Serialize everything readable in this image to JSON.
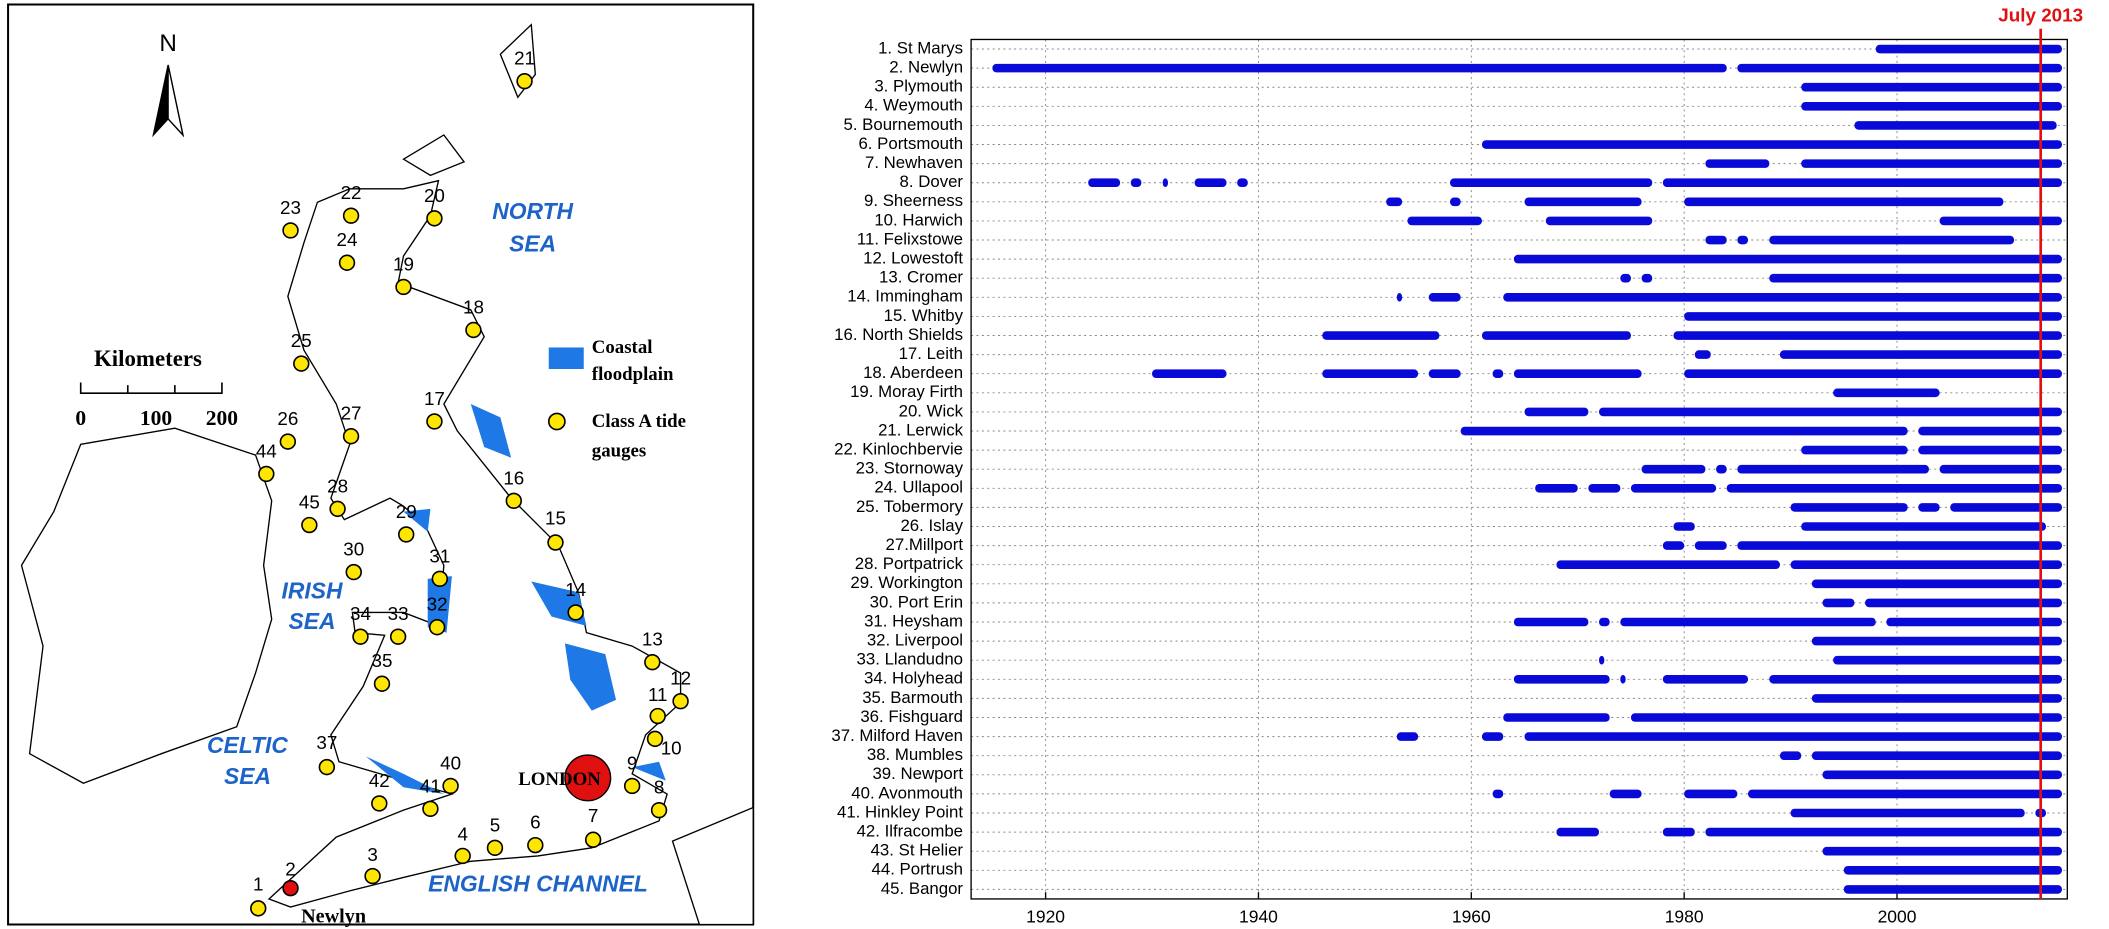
{
  "map": {
    "north": "N",
    "scale": {
      "title": "Kilometers",
      "ticks": [
        "0",
        "100",
        "200"
      ]
    },
    "legend": [
      [
        "Coastal",
        "floodplain"
      ],
      [
        "Class A tide",
        "gauges"
      ]
    ],
    "seas": [
      [
        "NORTH",
        "SEA"
      ],
      [
        "IRISH",
        "SEA"
      ],
      [
        "CELTIC",
        "SEA"
      ],
      [
        "ENGLISH CHANNEL"
      ]
    ],
    "gauges": [
      "1",
      "2",
      "3",
      "4",
      "5",
      "6",
      "7",
      "8",
      "9",
      "10",
      "11",
      "12",
      "13",
      "14",
      "15",
      "16",
      "17",
      "18",
      "19",
      "20",
      "21",
      "22",
      "23",
      "24",
      "25",
      "26",
      "27",
      "28",
      "29",
      "30",
      "31",
      "32",
      "33",
      "34",
      "35",
      "37",
      "40",
      "41",
      "42",
      "44",
      "45"
    ],
    "london": "LONDON",
    "newlyn": "Newlyn"
  },
  "chart_data": {
    "type": "timeline",
    "categories": [
      "1. St Marys",
      "2. Newlyn",
      "3. Plymouth",
      "4. Weymouth",
      "5. Bournemouth",
      "6. Portsmouth",
      "7. Newhaven",
      "8. Dover",
      "9. Sheerness",
      "10. Harwich",
      "11. Felixstowe",
      "12. Lowestoft",
      "13. Cromer",
      "14. Immingham",
      "15. Whitby",
      "16. North Shields",
      "17. Leith",
      "18. Aberdeen",
      "19. Moray Firth",
      "20. Wick",
      "21. Lerwick",
      "22. Kinlochbervie",
      "23. Stornoway",
      "24. Ullapool",
      "25. Tobermory",
      "26. Islay",
      "27.Millport",
      "28. Portpatrick",
      "29. Workington",
      "30. Port Erin",
      "31. Heysham",
      "32. Liverpool",
      "33. Llandudno",
      "34. Holyhead",
      "35. Barmouth",
      "36. Fishguard",
      "37. Milford Haven",
      "38. Mumbles",
      "39. Newport",
      "40. Avonmouth",
      "41. Hinkley Point",
      "42. Ilfracombe",
      "43. St Helier",
      "44. Portrush",
      "45. Bangor"
    ],
    "segments": [
      [
        [
          1998,
          2015.5
        ]
      ],
      [
        [
          1915,
          1984
        ],
        [
          1985,
          2015.5
        ]
      ],
      [
        [
          1991,
          2015.5
        ]
      ],
      [
        [
          1991,
          2015.5
        ]
      ],
      [
        [
          1996,
          2015
        ]
      ],
      [
        [
          1961,
          2015.5
        ]
      ],
      [
        [
          1982,
          1988
        ],
        [
          1991,
          2015.5
        ]
      ],
      [
        [
          1924,
          1927
        ],
        [
          1928,
          1929
        ],
        [
          1931,
          1931.5
        ],
        [
          1934,
          1937
        ],
        [
          1938,
          1939
        ],
        [
          1958,
          1977
        ],
        [
          1978,
          2015.5
        ]
      ],
      [
        [
          1952,
          1953.5
        ],
        [
          1958,
          1959
        ],
        [
          1965,
          1976
        ],
        [
          1980,
          2010
        ]
      ],
      [
        [
          1954,
          1961
        ],
        [
          1967,
          1977
        ],
        [
          2004,
          2015.5
        ]
      ],
      [
        [
          1982,
          1984
        ],
        [
          1985,
          1986
        ],
        [
          1988,
          2011
        ]
      ],
      [
        [
          1964,
          2015.5
        ]
      ],
      [
        [
          1974,
          1975
        ],
        [
          1976,
          1977
        ],
        [
          1988,
          2015.5
        ]
      ],
      [
        [
          1953,
          1953.5
        ],
        [
          1956,
          1959
        ],
        [
          1963,
          2015.5
        ]
      ],
      [
        [
          1980,
          2015.5
        ]
      ],
      [
        [
          1946,
          1957
        ],
        [
          1961,
          1975
        ],
        [
          1979,
          2015.5
        ]
      ],
      [
        [
          1981,
          1982.5
        ],
        [
          1989,
          2015.5
        ]
      ],
      [
        [
          1930,
          1937
        ],
        [
          1946,
          1955
        ],
        [
          1956,
          1959
        ],
        [
          1962,
          1963
        ],
        [
          1964,
          1976
        ],
        [
          1980,
          2015.5
        ]
      ],
      [
        [
          1994,
          2004
        ]
      ],
      [
        [
          1965,
          1971
        ],
        [
          1972,
          2015.5
        ]
      ],
      [
        [
          1959,
          2001
        ],
        [
          2002,
          2015.5
        ]
      ],
      [
        [
          1991,
          2001
        ],
        [
          2002,
          2015.5
        ]
      ],
      [
        [
          1976,
          1982
        ],
        [
          1983,
          1984
        ],
        [
          1985,
          2003
        ],
        [
          2004,
          2015.5
        ]
      ],
      [
        [
          1966,
          1970
        ],
        [
          1971,
          1974
        ],
        [
          1975,
          1983
        ],
        [
          1984,
          2015.5
        ]
      ],
      [
        [
          1990,
          2001
        ],
        [
          2002,
          2004
        ],
        [
          2005,
          2015.5
        ]
      ],
      [
        [
          1979,
          1981
        ],
        [
          1991,
          2014
        ]
      ],
      [
        [
          1978,
          1980
        ],
        [
          1981,
          1984
        ],
        [
          1985,
          2015.5
        ]
      ],
      [
        [
          1968,
          1989
        ],
        [
          1990,
          2015.5
        ]
      ],
      [
        [
          1992,
          2015.5
        ]
      ],
      [
        [
          1993,
          1996
        ],
        [
          1997,
          2015.5
        ]
      ],
      [
        [
          1964,
          1971
        ],
        [
          1972,
          1973
        ],
        [
          1974,
          1998
        ],
        [
          1999,
          2015.5
        ]
      ],
      [
        [
          1992,
          2015.5
        ]
      ],
      [
        [
          1972,
          1972.5
        ],
        [
          1994,
          2015.5
        ]
      ],
      [
        [
          1964,
          1973
        ],
        [
          1974,
          1974.5
        ],
        [
          1978,
          1986
        ],
        [
          1988,
          2015.5
        ]
      ],
      [
        [
          1992,
          2015.5
        ]
      ],
      [
        [
          1963,
          1973
        ],
        [
          1975,
          2015.5
        ]
      ],
      [
        [
          1953,
          1955
        ],
        [
          1961,
          1963
        ],
        [
          1965,
          2015.5
        ]
      ],
      [
        [
          1989,
          1991
        ],
        [
          1992,
          2015.5
        ]
      ],
      [
        [
          1993,
          2015.5
        ]
      ],
      [
        [
          1962,
          1963
        ],
        [
          1973,
          1976
        ],
        [
          1980,
          1985
        ],
        [
          1986,
          2015.5
        ]
      ],
      [
        [
          1990,
          2012
        ],
        [
          2013,
          2014
        ]
      ],
      [
        [
          1968,
          1972
        ],
        [
          1978,
          1981
        ],
        [
          1982,
          2015.5
        ]
      ],
      [
        [
          1993,
          2015.5
        ]
      ],
      [
        [
          1995,
          2015.5
        ]
      ],
      [
        [
          1995,
          2015.5
        ]
      ]
    ],
    "color": "#0a0ad8",
    "xlim": [
      1913,
      2016
    ],
    "xticks": [
      1920,
      1940,
      1960,
      1980,
      2000
    ],
    "grid": true,
    "marker": {
      "value": 2013.5,
      "label": "July 2013",
      "color": "#e01010"
    }
  }
}
